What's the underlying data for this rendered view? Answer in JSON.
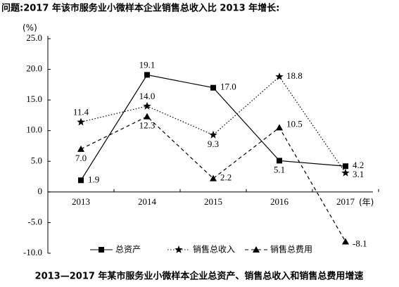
{
  "question": "问题:2017 年该市服务业小微样本企业销售总收入比 2013 年增长:",
  "chart_data": {
    "type": "line",
    "caption": "2013—2017 年某市服务业小微样本企业总资产、销售总收入和销售总费用增速",
    "y_unit": "(%)",
    "x_unit": "(年)",
    "categories": [
      "2013",
      "2014",
      "2015",
      "2016",
      "2017"
    ],
    "series": [
      {
        "name": "总资产",
        "color": "#000000",
        "marker": "square",
        "dash": "solid",
        "values": [
          1.9,
          19.1,
          17.0,
          5.1,
          4.2
        ],
        "value_labels": [
          "1.9",
          "19.1",
          "17.0",
          "5.1",
          "4.2"
        ]
      },
      {
        "name": "销售总收入",
        "color": "#000000",
        "marker": "star",
        "dash": "dotted",
        "values": [
          11.4,
          14.0,
          9.3,
          18.8,
          3.1
        ],
        "value_labels": [
          "11.4",
          "14.0",
          "9.3",
          "18.8",
          "3.1"
        ]
      },
      {
        "name": "销售总费用",
        "color": "#000000",
        "marker": "triangle",
        "dash": "dashed",
        "values": [
          7.0,
          12.3,
          2.2,
          10.5,
          -8.1
        ],
        "value_labels": [
          "7.0",
          "12.3",
          "2.2",
          "10.5",
          "-8.1"
        ]
      }
    ],
    "ylim": [
      -10,
      25
    ],
    "yticks": [
      {
        "value": 25,
        "label": "25.0"
      },
      {
        "value": 20,
        "label": "20.0"
      },
      {
        "value": 15,
        "label": "15.0"
      },
      {
        "value": 10,
        "label": "10.0"
      },
      {
        "value": 5,
        "label": "5.0"
      },
      0,
      {
        "value": -5,
        "label": "-5.0"
      },
      {
        "value": -10,
        "label": "-10.0"
      }
    ]
  }
}
